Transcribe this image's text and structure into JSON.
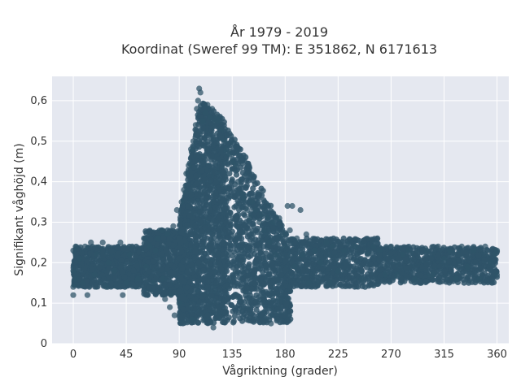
{
  "chart_data": {
    "type": "scatter",
    "title_lines": [
      "År 1979 - 2019",
      "Koordinat (Sweref 99 TM): E 351862, N 6171613"
    ],
    "xlabel": "Vågriktning (grader)",
    "ylabel": "Signifikant våghöjd (m)",
    "xlim": [
      -18,
      370
    ],
    "ylim": [
      0,
      0.66
    ],
    "xticks": [
      0,
      45,
      90,
      135,
      180,
      225,
      270,
      315,
      360
    ],
    "xtick_labels": [
      "0",
      "45",
      "90",
      "135",
      "180",
      "225",
      "270",
      "315",
      "360"
    ],
    "yticks": [
      0,
      0.1,
      0.2,
      0.3,
      0.4,
      0.5,
      0.6
    ],
    "ytick_labels": [
      "0",
      "0,1",
      "0,2",
      "0,3",
      "0,4",
      "0,5",
      "0,6"
    ],
    "grid": true,
    "colors": {
      "marker": "#2f5468",
      "plot_bg": "#e5e8f0",
      "grid": "#ffffff"
    },
    "points": [
      [
        0,
        0.18
      ],
      [
        0,
        0.23
      ],
      [
        0,
        0.14
      ],
      [
        0,
        0.12
      ],
      [
        2,
        0.24
      ],
      [
        2,
        0.16
      ],
      [
        5,
        0.21
      ],
      [
        8,
        0.15
      ],
      [
        10,
        0.24
      ],
      [
        12,
        0.12
      ],
      [
        15,
        0.25
      ],
      [
        18,
        0.17
      ],
      [
        20,
        0.22
      ],
      [
        25,
        0.25
      ],
      [
        28,
        0.14
      ],
      [
        30,
        0.2
      ],
      [
        35,
        0.18
      ],
      [
        40,
        0.25
      ],
      [
        42,
        0.12
      ],
      [
        45,
        0.15
      ],
      [
        48,
        0.22
      ],
      [
        50,
        0.24
      ],
      [
        55,
        0.16
      ],
      [
        60,
        0.26
      ],
      [
        62,
        0.19
      ],
      [
        65,
        0.24
      ],
      [
        68,
        0.15
      ],
      [
        70,
        0.23
      ],
      [
        72,
        0.26
      ],
      [
        75,
        0.28
      ],
      [
        76,
        0.16
      ],
      [
        78,
        0.11
      ],
      [
        80,
        0.27
      ],
      [
        82,
        0.09
      ],
      [
        83,
        0.12
      ],
      [
        85,
        0.29
      ],
      [
        86,
        0.07
      ],
      [
        88,
        0.33
      ],
      [
        90,
        0.1
      ],
      [
        92,
        0.35
      ],
      [
        94,
        0.38
      ],
      [
        96,
        0.42
      ],
      [
        98,
        0.44
      ],
      [
        100,
        0.48
      ],
      [
        101,
        0.06
      ],
      [
        102,
        0.5
      ],
      [
        104,
        0.54
      ],
      [
        105,
        0.58
      ],
      [
        106,
        0.6
      ],
      [
        107,
        0.63
      ],
      [
        108,
        0.62
      ],
      [
        110,
        0.55
      ],
      [
        112,
        0.57
      ],
      [
        114,
        0.59
      ],
      [
        116,
        0.56
      ],
      [
        118,
        0.58
      ],
      [
        119,
        0.04
      ],
      [
        120,
        0.55
      ],
      [
        122,
        0.56
      ],
      [
        124,
        0.55
      ],
      [
        126,
        0.53
      ],
      [
        128,
        0.5
      ],
      [
        130,
        0.48
      ],
      [
        132,
        0.47
      ],
      [
        135,
        0.45
      ],
      [
        138,
        0.44
      ],
      [
        140,
        0.4
      ],
      [
        143,
        0.37
      ],
      [
        145,
        0.36
      ],
      [
        148,
        0.33
      ],
      [
        150,
        0.31
      ],
      [
        152,
        0.35
      ],
      [
        155,
        0.33
      ],
      [
        158,
        0.3
      ],
      [
        160,
        0.32
      ],
      [
        162,
        0.28
      ],
      [
        165,
        0.31
      ],
      [
        167,
        0.25
      ],
      [
        168,
        0.05
      ],
      [
        170,
        0.3
      ],
      [
        172,
        0.22
      ],
      [
        175,
        0.31
      ],
      [
        178,
        0.27
      ],
      [
        180,
        0.24
      ],
      [
        182,
        0.34
      ],
      [
        184,
        0.28
      ],
      [
        186,
        0.34
      ],
      [
        188,
        0.19
      ],
      [
        190,
        0.26
      ],
      [
        193,
        0.33
      ],
      [
        195,
        0.22
      ],
      [
        198,
        0.27
      ],
      [
        200,
        0.15
      ],
      [
        205,
        0.23
      ],
      [
        210,
        0.2
      ],
      [
        215,
        0.25
      ],
      [
        218,
        0.15
      ],
      [
        220,
        0.24
      ],
      [
        225,
        0.18
      ],
      [
        230,
        0.23
      ],
      [
        240,
        0.24
      ],
      [
        245,
        0.16
      ],
      [
        250,
        0.22
      ],
      [
        255,
        0.24
      ],
      [
        260,
        0.23
      ],
      [
        265,
        0.17
      ],
      [
        270,
        0.24
      ],
      [
        275,
        0.17
      ],
      [
        280,
        0.22
      ],
      [
        285,
        0.23
      ],
      [
        290,
        0.16
      ],
      [
        300,
        0.23
      ],
      [
        305,
        0.17
      ],
      [
        310,
        0.24
      ],
      [
        315,
        0.21
      ],
      [
        320,
        0.23
      ],
      [
        325,
        0.16
      ],
      [
        330,
        0.24
      ],
      [
        335,
        0.19
      ],
      [
        340,
        0.23
      ],
      [
        345,
        0.16
      ],
      [
        350,
        0.24
      ],
      [
        355,
        0.2
      ],
      [
        358,
        0.22
      ],
      [
        360,
        0.17
      ],
      [
        360,
        0.23
      ]
    ],
    "density_bands": [
      {
        "x": [
          0,
          60
        ],
        "y": [
          0.14,
          0.24
        ],
        "count": 700
      },
      {
        "x": [
          60,
          90
        ],
        "y": [
          0.12,
          0.28
        ],
        "count": 500
      },
      {
        "x": [
          90,
          130
        ],
        "y": [
          0.05,
          0.6
        ],
        "count": 1600
      },
      {
        "x": [
          130,
          185
        ],
        "y": [
          0.05,
          0.35
        ],
        "count": 1000
      },
      {
        "x": [
          185,
          260
        ],
        "y": [
          0.14,
          0.26
        ],
        "count": 650
      },
      {
        "x": [
          260,
          360
        ],
        "y": [
          0.15,
          0.24
        ],
        "count": 700
      }
    ]
  }
}
